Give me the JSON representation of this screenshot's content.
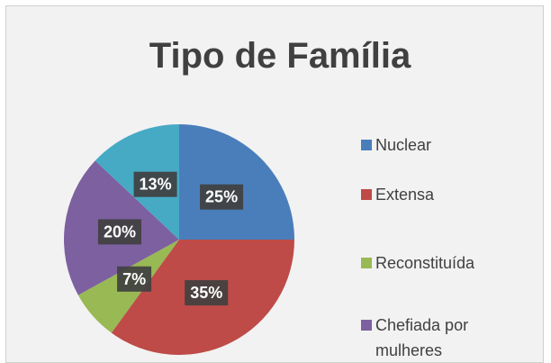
{
  "chart_data": {
    "type": "pie",
    "title": "Tipo de Família",
    "categories": [
      "Nuclear",
      "Extensa",
      "Reconstituída",
      "Chefiada por mulheres",
      null
    ],
    "values": [
      25,
      35,
      7,
      20,
      13
    ],
    "value_labels": [
      "25%",
      "35%",
      "7%",
      "20%",
      "13%"
    ],
    "colors": [
      "#4a7ebb",
      "#be4b48",
      "#98b954",
      "#7d60a0",
      "#46aac5"
    ],
    "legend": "right"
  }
}
